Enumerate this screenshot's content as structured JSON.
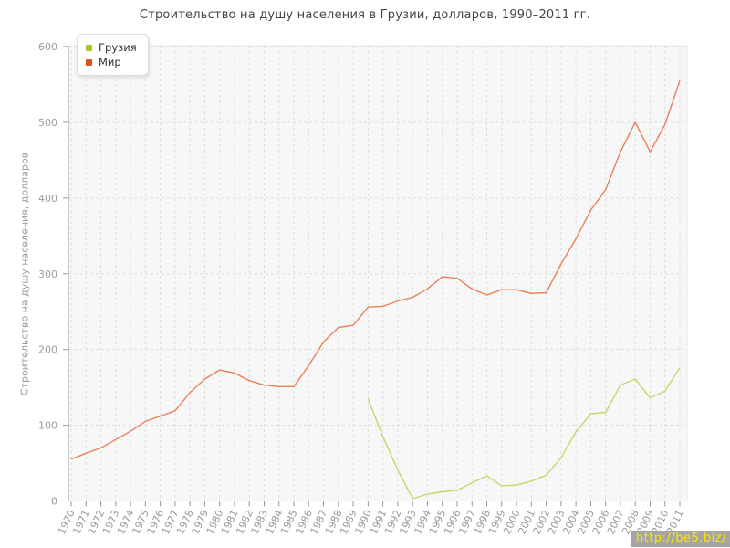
{
  "title": "Строительство на душу населения в Грузии, долларов, 1990–2011 гг.",
  "watermark": "http://be5.biz/",
  "colors": {
    "title_text": "#454545",
    "axis_text": "#9a9a9a",
    "axis_line": "#999999",
    "grid_line": "#dddddd",
    "plot_background": "#f7f7f7",
    "plot_border": "#e9e9e9",
    "georgia_line": "#c3d968",
    "georgia_marker": "#a6c826",
    "world_line": "#ea8058",
    "world_marker": "#d9531e",
    "watermark_background": "#a5a5a5",
    "watermark_text": "#ffe400"
  },
  "chart_data": {
    "type": "line",
    "title": "Строительство на душу населения в Грузии, долларов, 1990–2011 гг.",
    "xlabel": "",
    "ylabel": "Строительство на душу населения, долларов",
    "ylim": [
      0,
      600
    ],
    "yticks": [
      0,
      100,
      200,
      300,
      400,
      500,
      600
    ],
    "grid": true,
    "legend_position": "top-left",
    "x": [
      1970,
      1971,
      1972,
      1973,
      1974,
      1975,
      1976,
      1977,
      1978,
      1979,
      1980,
      1981,
      1982,
      1983,
      1984,
      1985,
      1986,
      1987,
      1988,
      1989,
      1990,
      1991,
      1992,
      1993,
      1994,
      1995,
      1996,
      1997,
      1998,
      1999,
      2000,
      2001,
      2002,
      2003,
      2004,
      2005,
      2006,
      2007,
      2008,
      2009,
      2010,
      2011
    ],
    "series": [
      {
        "name": "Грузия",
        "values": [
          null,
          null,
          null,
          null,
          null,
          null,
          null,
          null,
          null,
          null,
          null,
          null,
          null,
          null,
          null,
          null,
          null,
          null,
          null,
          null,
          135,
          85,
          41,
          3,
          9,
          12,
          14,
          24,
          33,
          20,
          21,
          26,
          34,
          57,
          91,
          115,
          117,
          153,
          161,
          136,
          145,
          176
        ]
      },
      {
        "name": "Мир",
        "values": [
          55,
          63,
          70,
          81,
          92,
          105,
          112,
          119,
          143,
          161,
          173,
          169,
          159,
          153,
          151,
          151,
          179,
          210,
          229,
          232,
          256,
          257,
          264,
          269,
          280,
          296,
          294,
          280,
          272,
          279,
          279,
          274,
          275,
          313,
          346,
          384,
          411,
          461,
          500,
          461,
          497,
          555
        ]
      }
    ]
  }
}
